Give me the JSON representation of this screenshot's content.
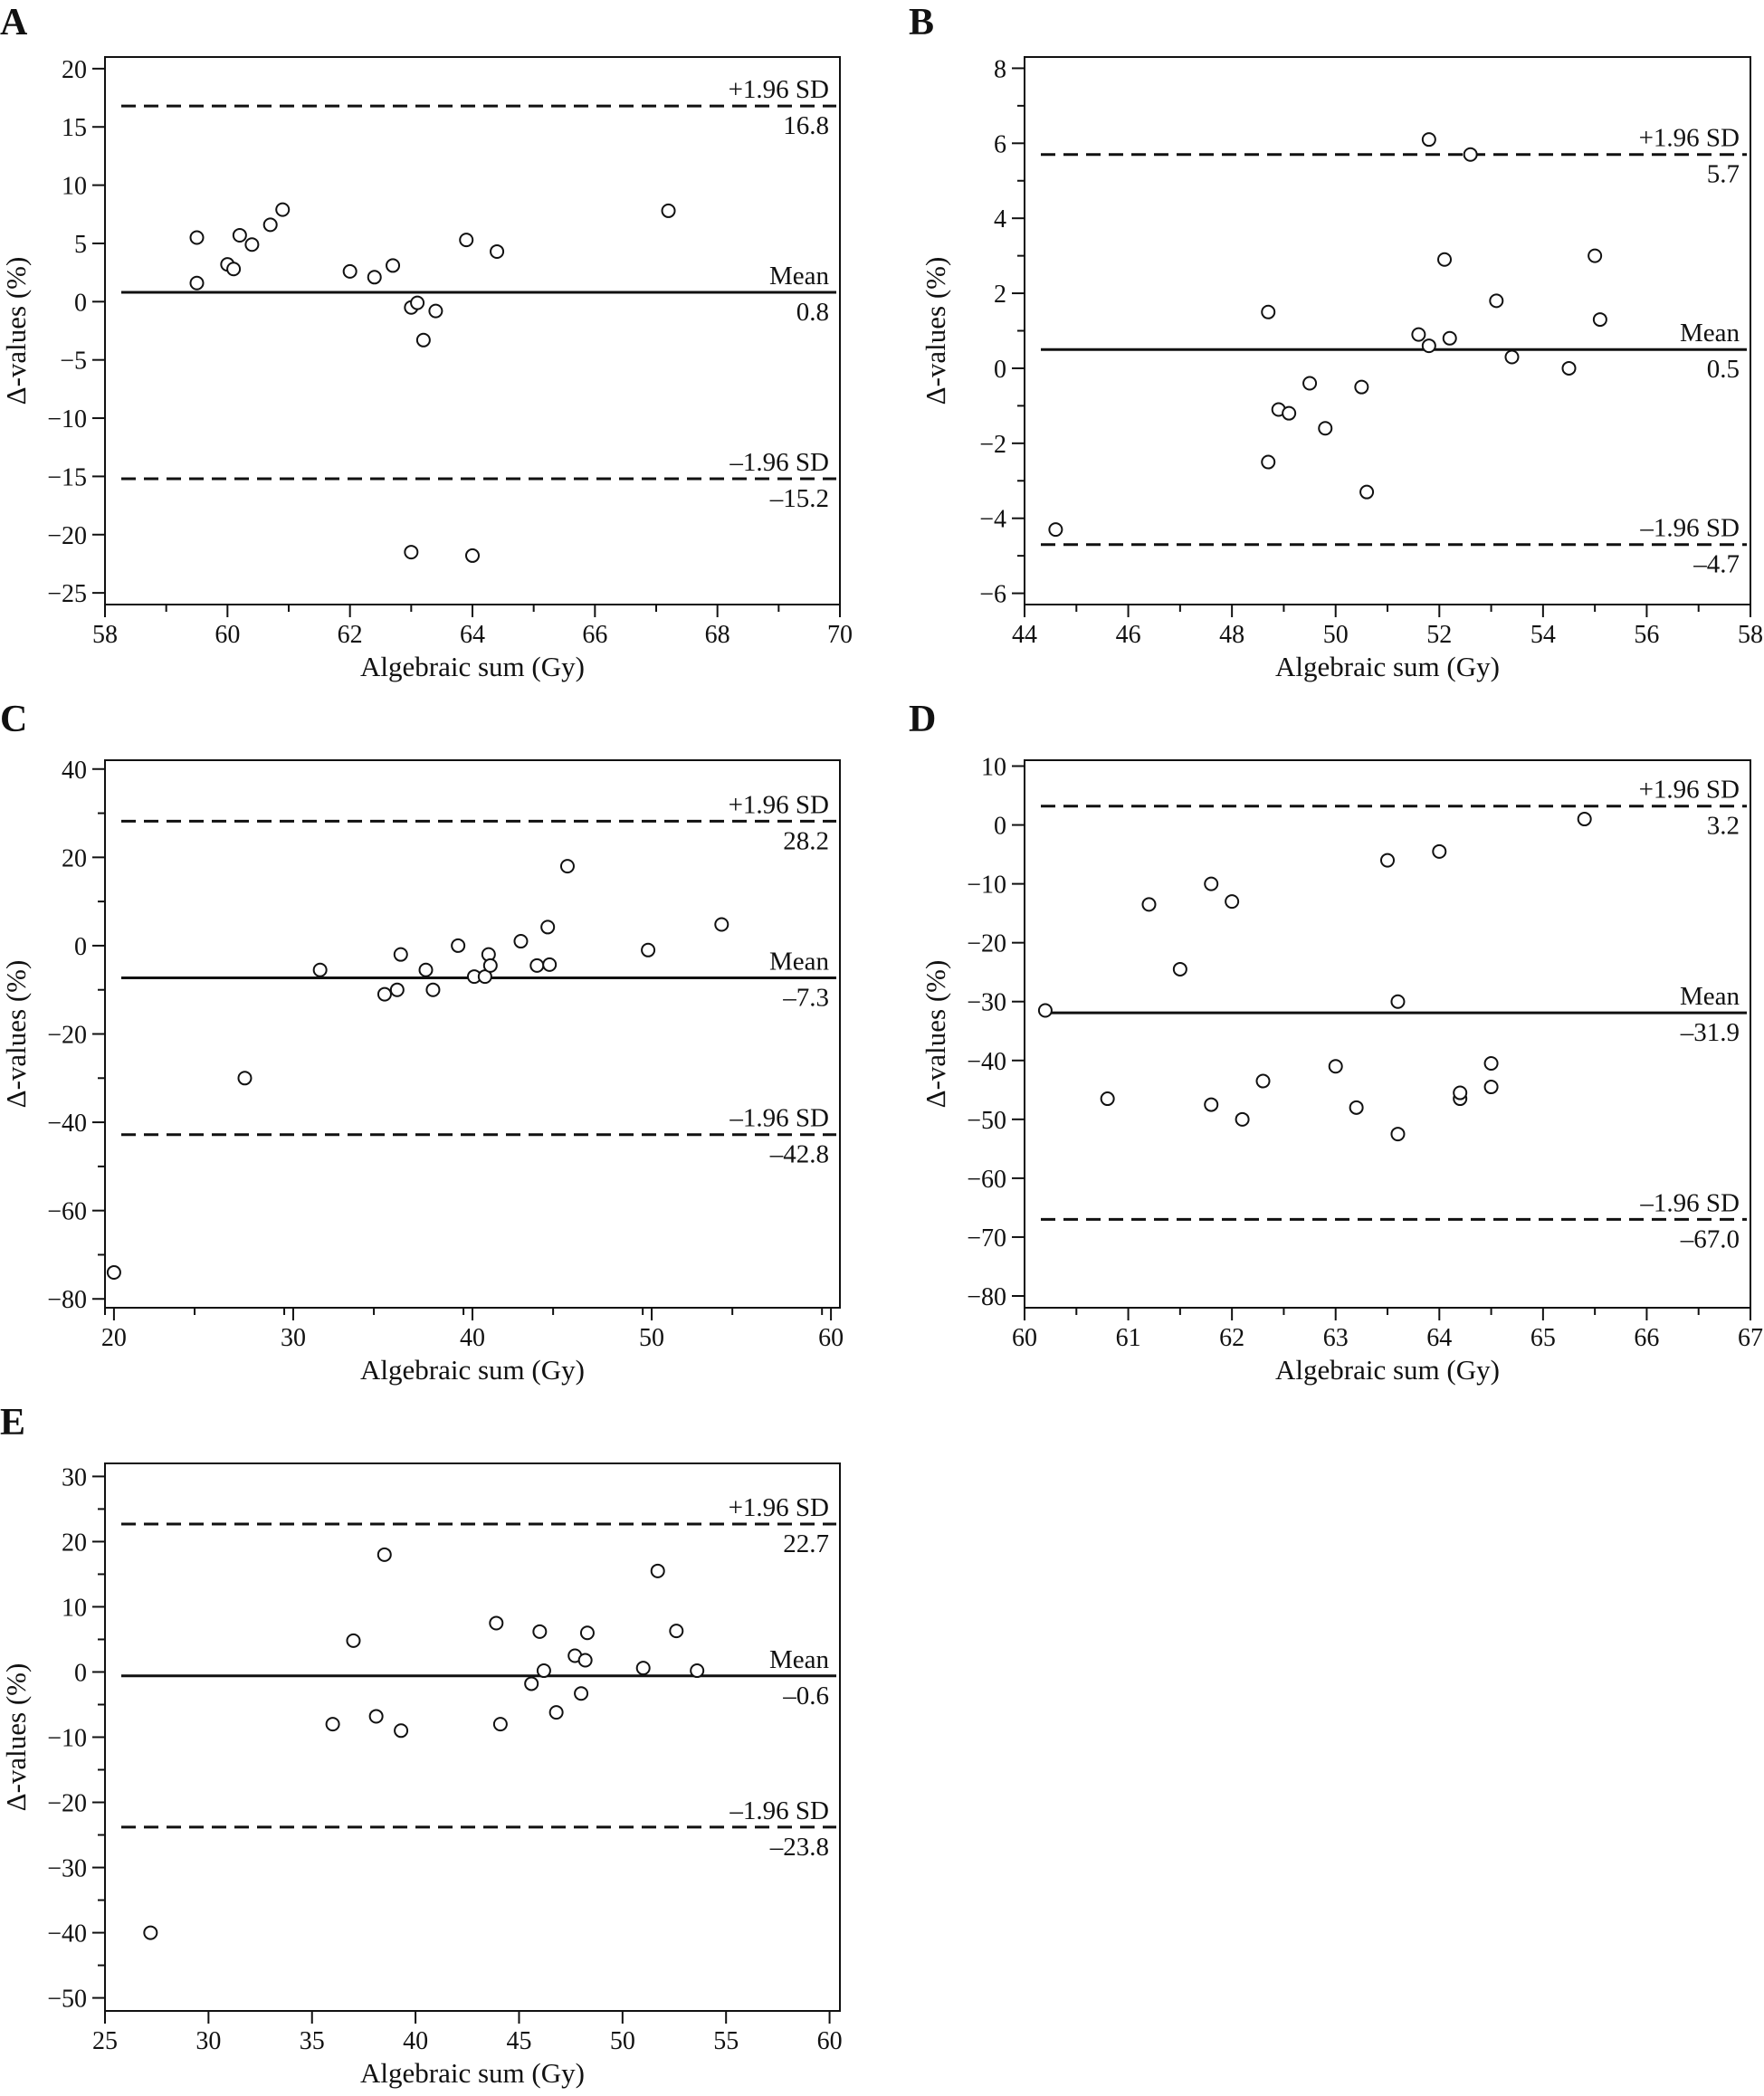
{
  "figure": {
    "description_none": ""
  },
  "chart_data": [
    {
      "type": "scatter",
      "panel": "A",
      "xlabel": "Algebraic sum (Gy)",
      "ylabel": "Δ-values (%)",
      "xlim": [
        58,
        70
      ],
      "ylim": [
        -26,
        21
      ],
      "xticks": [
        58,
        60,
        62,
        64,
        66,
        68,
        70
      ],
      "yticks": [
        -25,
        -20,
        -15,
        -10,
        -5,
        0,
        5,
        10,
        15,
        20
      ],
      "xminor": 1,
      "yminor": 0,
      "points": [
        [
          59.5,
          5.5
        ],
        [
          59.5,
          1.6
        ],
        [
          60.0,
          3.2
        ],
        [
          60.1,
          2.8
        ],
        [
          60.2,
          5.7
        ],
        [
          60.4,
          4.9
        ],
        [
          60.7,
          6.6
        ],
        [
          60.9,
          7.9
        ],
        [
          62.0,
          2.6
        ],
        [
          62.4,
          2.1
        ],
        [
          62.7,
          3.1
        ],
        [
          63.0,
          -0.5
        ],
        [
          63.1,
          -0.1
        ],
        [
          63.2,
          -3.3
        ],
        [
          63.4,
          -0.8
        ],
        [
          63.9,
          5.3
        ],
        [
          64.4,
          4.3
        ],
        [
          67.2,
          7.8
        ],
        [
          63.0,
          -21.5
        ],
        [
          64.0,
          -21.8
        ]
      ],
      "mean": 0.8,
      "upper": 16.8,
      "lower": -15.2,
      "mean_label": "Mean",
      "mean_value": "0.8",
      "upper_label": "+1.96 SD",
      "upper_value": "16.8",
      "lower_label": "–1.96 SD",
      "lower_value": "–15.2"
    },
    {
      "type": "scatter",
      "panel": "B",
      "xlabel": "Algebraic sum (Gy)",
      "ylabel": "Δ-values (%)",
      "xlim": [
        44,
        58
      ],
      "ylim": [
        -6.3,
        8.3
      ],
      "xticks": [
        44,
        46,
        48,
        50,
        52,
        54,
        56,
        58
      ],
      "yticks": [
        -6,
        -4,
        -2,
        0,
        2,
        4,
        6,
        8
      ],
      "xminor": 1,
      "yminor": 1,
      "points": [
        [
          44.6,
          -4.3
        ],
        [
          48.7,
          1.5
        ],
        [
          48.7,
          -2.5
        ],
        [
          48.9,
          -1.1
        ],
        [
          49.1,
          -1.2
        ],
        [
          49.5,
          -0.4
        ],
        [
          49.8,
          -1.6
        ],
        [
          50.5,
          -0.5
        ],
        [
          50.6,
          -3.3
        ],
        [
          51.6,
          0.9
        ],
        [
          51.8,
          0.6
        ],
        [
          51.8,
          6.1
        ],
        [
          52.1,
          2.9
        ],
        [
          52.2,
          0.8
        ],
        [
          52.6,
          5.7
        ],
        [
          53.1,
          1.8
        ],
        [
          53.4,
          0.3
        ],
        [
          54.5,
          0.0
        ],
        [
          55.0,
          3.0
        ],
        [
          55.1,
          1.3
        ]
      ],
      "mean": 0.5,
      "upper": 5.7,
      "lower": -4.7,
      "mean_label": "Mean",
      "mean_value": "0.5",
      "upper_label": "+1.96 SD",
      "upper_value": "5.7",
      "lower_label": "–1.96 SD",
      "lower_value": "–4.7"
    },
    {
      "type": "scatter",
      "panel": "C",
      "xlabel": "Algebraic sum (Gy)",
      "ylabel": "Δ-values (%)",
      "xlim": [
        19.5,
        60.5
      ],
      "ylim": [
        -82,
        42
      ],
      "xticks": [
        20,
        30,
        40,
        50,
        60
      ],
      "yticks": [
        -80,
        -60,
        -40,
        -20,
        0,
        20,
        40
      ],
      "xminor": 5,
      "yminor": 10,
      "points": [
        [
          20.0,
          -74
        ],
        [
          27.3,
          -30
        ],
        [
          31.5,
          -5.5
        ],
        [
          35.1,
          -11.0
        ],
        [
          35.8,
          -10.0
        ],
        [
          36.0,
          -2.0
        ],
        [
          37.4,
          -5.5
        ],
        [
          37.8,
          -10.0
        ],
        [
          39.2,
          0.0
        ],
        [
          40.1,
          -7.0
        ],
        [
          40.7,
          -7.0
        ],
        [
          40.9,
          -2.0
        ],
        [
          41.0,
          -4.5
        ],
        [
          42.7,
          1.0
        ],
        [
          43.6,
          -4.5
        ],
        [
          44.2,
          4.2
        ],
        [
          44.3,
          -4.3
        ],
        [
          45.3,
          18.0
        ],
        [
          49.8,
          -1.0
        ],
        [
          53.9,
          4.8
        ]
      ],
      "mean": -7.3,
      "upper": 28.2,
      "lower": -42.8,
      "mean_label": "Mean",
      "mean_value": "–7.3",
      "upper_label": "+1.96 SD",
      "upper_value": "28.2",
      "lower_label": "–1.96 SD",
      "lower_value": "–42.8"
    },
    {
      "type": "scatter",
      "panel": "D",
      "xlabel": "Algebraic sum (Gy)",
      "ylabel": "Δ-values (%)",
      "xlim": [
        60,
        67
      ],
      "ylim": [
        -82,
        11
      ],
      "xticks": [
        60,
        61,
        62,
        63,
        64,
        65,
        66,
        67
      ],
      "yticks": [
        -80,
        -70,
        -60,
        -50,
        -40,
        -30,
        -20,
        -10,
        0,
        10
      ],
      "xminor": 0.5,
      "yminor": 0,
      "points": [
        [
          60.2,
          -31.5
        ],
        [
          60.8,
          -46.5
        ],
        [
          61.2,
          -13.5
        ],
        [
          61.5,
          -24.5
        ],
        [
          61.8,
          -47.5
        ],
        [
          61.8,
          -10.0
        ],
        [
          62.0,
          -13.0
        ],
        [
          62.1,
          -50.0
        ],
        [
          62.3,
          -43.5
        ],
        [
          63.0,
          -41.0
        ],
        [
          63.2,
          -48.0
        ],
        [
          63.5,
          -6.0
        ],
        [
          63.6,
          -52.5
        ],
        [
          63.6,
          -30.0
        ],
        [
          64.0,
          -4.5
        ],
        [
          64.2,
          -46.5
        ],
        [
          64.2,
          -45.5
        ],
        [
          64.5,
          -44.5
        ],
        [
          64.5,
          -40.5
        ],
        [
          65.4,
          1.0
        ]
      ],
      "mean": -31.9,
      "upper": 3.2,
      "lower": -67.0,
      "mean_label": "Mean",
      "mean_value": "–31.9",
      "upper_label": "+1.96 SD",
      "upper_value": "3.2",
      "lower_label": "–1.96 SD",
      "lower_value": "–67.0"
    },
    {
      "type": "scatter",
      "panel": "E",
      "xlabel": "Algebraic sum (Gy)",
      "ylabel": "Δ-values (%)",
      "xlim": [
        25,
        60.5
      ],
      "ylim": [
        -52,
        32
      ],
      "xticks": [
        25,
        30,
        35,
        40,
        45,
        50,
        55,
        60
      ],
      "yticks": [
        -50,
        -40,
        -30,
        -20,
        -10,
        0,
        10,
        20,
        30
      ],
      "xminor": 0,
      "yminor": 5,
      "points": [
        [
          27.2,
          -40.0
        ],
        [
          36.0,
          -8.0
        ],
        [
          37.0,
          4.8
        ],
        [
          38.1,
          -6.8
        ],
        [
          38.5,
          18.0
        ],
        [
          39.3,
          -9.0
        ],
        [
          43.9,
          7.5
        ],
        [
          44.1,
          -8.0
        ],
        [
          45.6,
          -1.8
        ],
        [
          46.0,
          6.2
        ],
        [
          46.2,
          0.2
        ],
        [
          46.8,
          -6.2
        ],
        [
          47.7,
          2.5
        ],
        [
          48.0,
          -3.3
        ],
        [
          48.2,
          1.8
        ],
        [
          48.3,
          6.0
        ],
        [
          51.0,
          0.6
        ],
        [
          51.7,
          15.5
        ],
        [
          52.6,
          6.3
        ],
        [
          53.6,
          0.2
        ]
      ],
      "mean": -0.6,
      "upper": 22.7,
      "lower": -23.8,
      "mean_label": "Mean",
      "mean_value": "–0.6",
      "upper_label": "+1.96 SD",
      "upper_value": "22.7",
      "lower_label": "–1.96 SD",
      "lower_value": "–23.8"
    }
  ]
}
